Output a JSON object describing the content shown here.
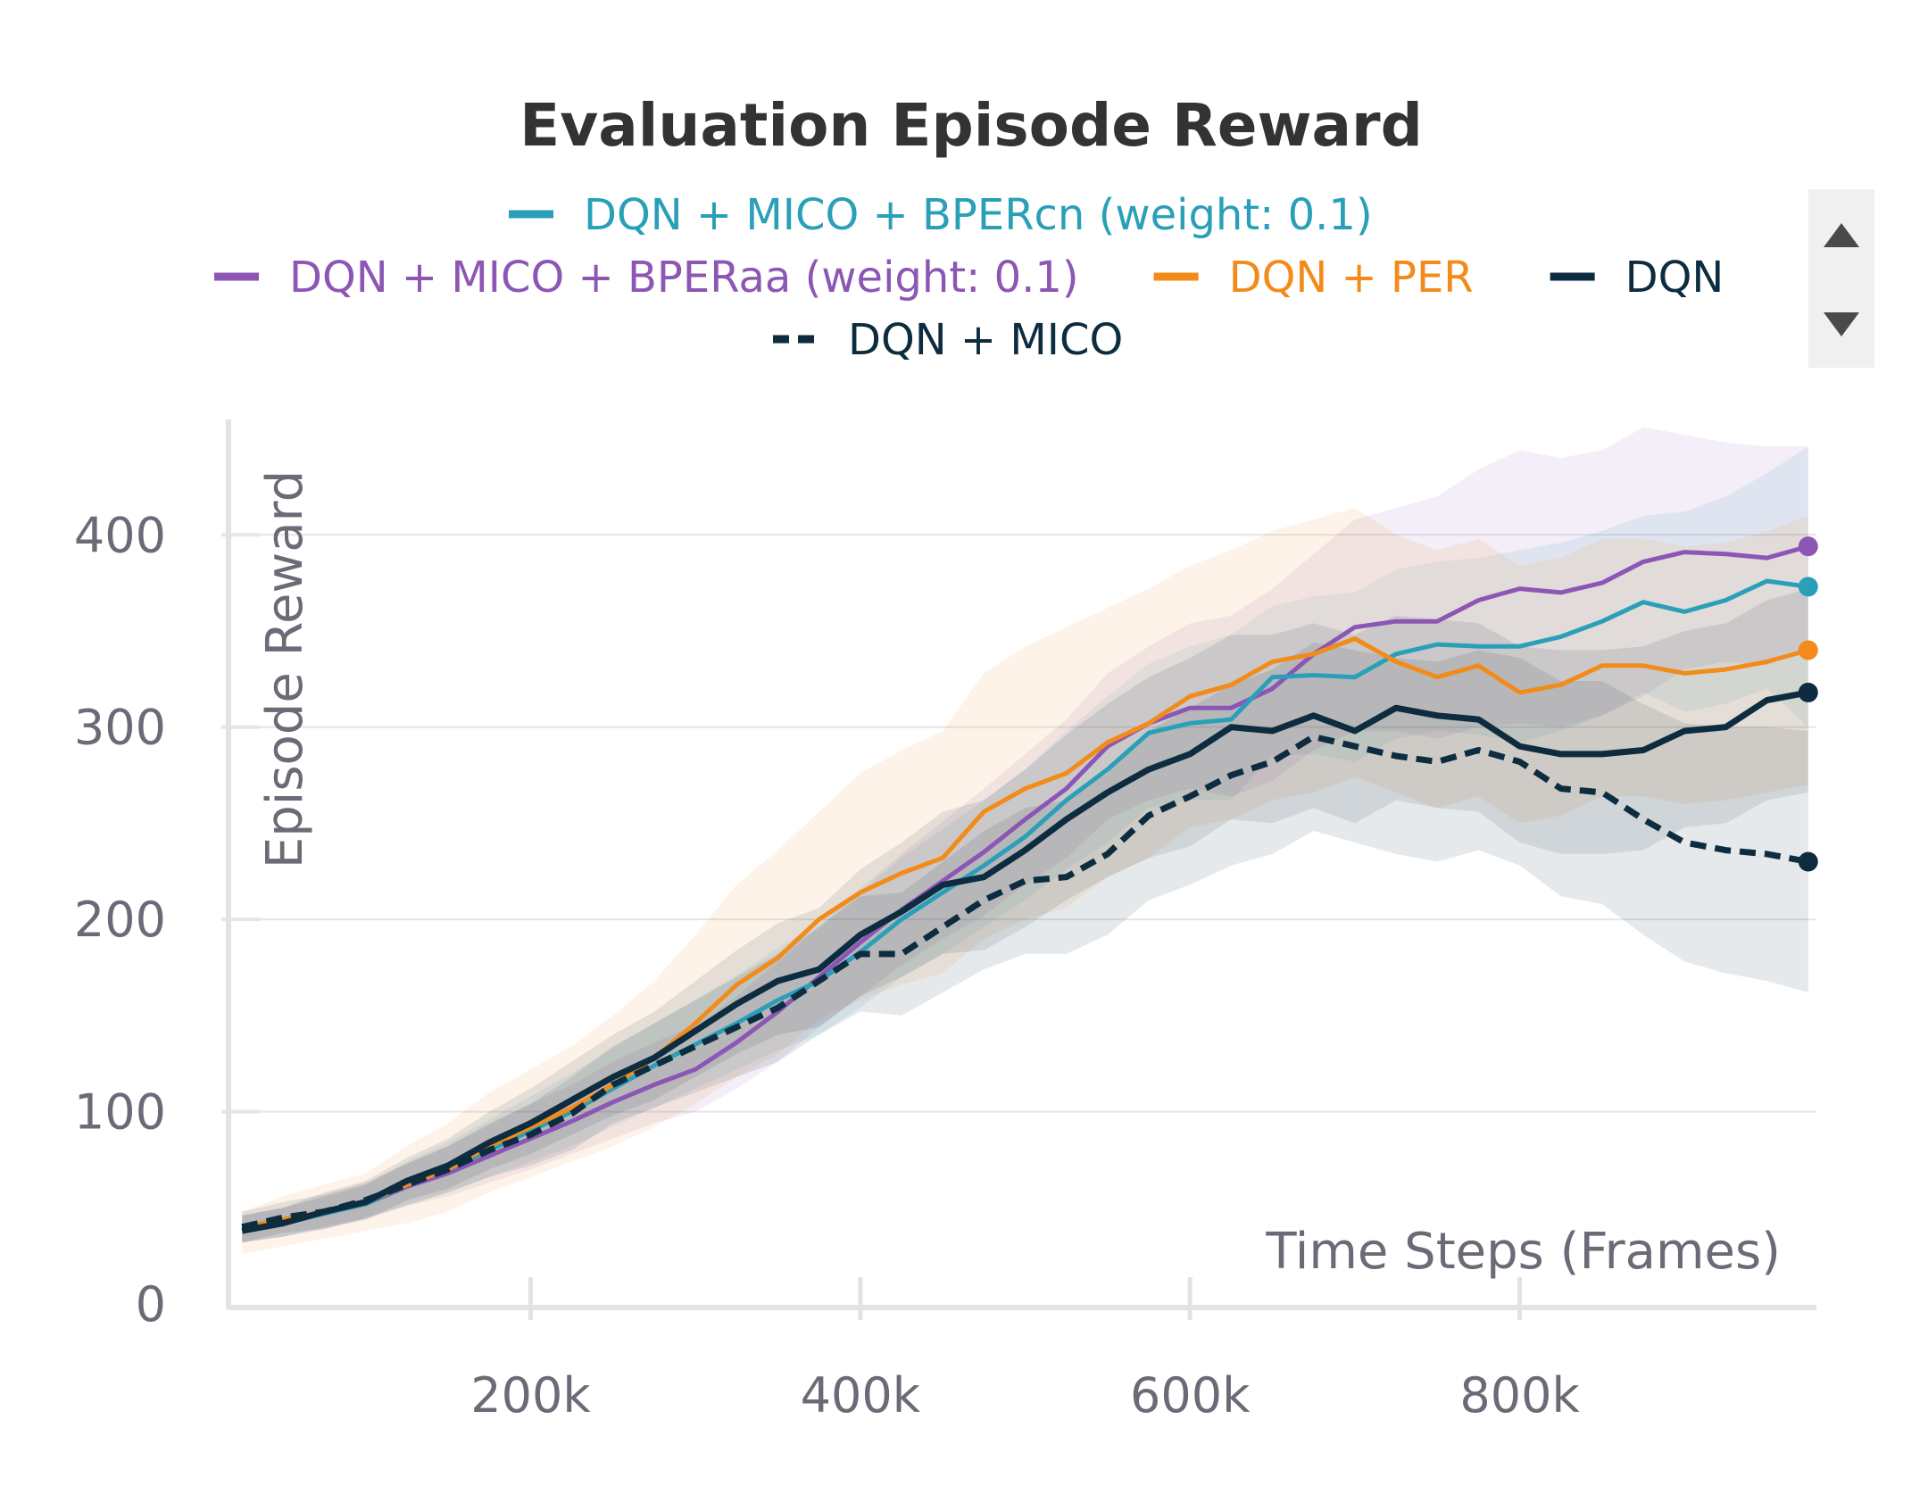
{
  "chart_data": {
    "type": "line",
    "title": "Evaluation Episode Reward",
    "xlabel": "Time Steps (Frames)",
    "ylabel": "Episode Reward",
    "xlim": [
      20000,
      980000
    ],
    "ylim": [
      0,
      460
    ],
    "x_ticks": [
      {
        "value": 200000,
        "label": "200k"
      },
      {
        "value": 400000,
        "label": "400k"
      },
      {
        "value": 600000,
        "label": "600k"
      },
      {
        "value": 800000,
        "label": "800k"
      }
    ],
    "y_ticks": [
      {
        "value": 0,
        "label": "0"
      },
      {
        "value": 100,
        "label": "100"
      },
      {
        "value": 200,
        "label": "200"
      },
      {
        "value": 300,
        "label": "300"
      },
      {
        "value": 400,
        "label": "400"
      }
    ],
    "grid": true,
    "legend_position": "top",
    "x": [
      25000,
      50000,
      75000,
      100000,
      125000,
      150000,
      175000,
      200000,
      225000,
      250000,
      275000,
      300000,
      325000,
      350000,
      375000,
      400000,
      425000,
      450000,
      475000,
      500000,
      525000,
      550000,
      575000,
      600000,
      625000,
      650000,
      675000,
      700000,
      725000,
      750000,
      775000,
      800000,
      825000,
      850000,
      875000,
      900000,
      925000,
      950000,
      975000
    ],
    "series": [
      {
        "name": "DQN + MICO + BPERcn (weight: 0.1)",
        "color": "#2aa0b8",
        "dashed": false,
        "values": [
          38,
          42,
          47,
          52,
          62,
          70,
          80,
          90,
          100,
          112,
          124,
          135,
          146,
          158,
          168,
          183,
          200,
          214,
          228,
          243,
          262,
          278,
          297,
          302,
          304,
          326,
          327,
          326,
          338,
          343,
          342,
          342,
          347,
          355,
          365,
          360,
          366,
          376,
          373
        ],
        "upper": [
          46,
          50,
          56,
          62,
          74,
          84,
          96,
          108,
          120,
          133,
          146,
          158,
          171,
          185,
          198,
          214,
          232,
          247,
          262,
          278,
          298,
          316,
          333,
          342,
          348,
          363,
          368,
          370,
          382,
          386,
          388,
          392,
          396,
          402,
          410,
          412,
          420,
          432,
          446
        ],
        "lower": [
          32,
          35,
          39,
          44,
          52,
          58,
          66,
          74,
          82,
          92,
          102,
          112,
          122,
          132,
          140,
          154,
          170,
          182,
          196,
          210,
          226,
          240,
          258,
          262,
          262,
          285,
          286,
          282,
          294,
          298,
          296,
          292,
          298,
          306,
          318,
          308,
          312,
          320,
          300
        ]
      },
      {
        "name": "DQN + MICO + BPERaa (weight: 0.1)",
        "color": "#8c56b5",
        "dashed": false,
        "values": [
          38,
          42,
          47,
          52,
          61,
          68,
          77,
          86,
          95,
          105,
          114,
          122,
          136,
          152,
          170,
          188,
          205,
          220,
          235,
          252,
          268,
          290,
          302,
          310,
          310,
          320,
          338,
          352,
          355,
          355,
          366,
          372,
          370,
          375,
          386,
          391,
          390,
          388,
          394
        ],
        "upper": [
          46,
          50,
          56,
          62,
          73,
          82,
          93,
          104,
          114,
          126,
          136,
          145,
          160,
          178,
          196,
          216,
          234,
          251,
          268,
          286,
          304,
          328,
          342,
          354,
          358,
          372,
          390,
          408,
          414,
          420,
          434,
          444,
          440,
          444,
          456,
          452,
          448,
          446,
          446
        ],
        "lower": [
          32,
          35,
          39,
          44,
          51,
          56,
          63,
          70,
          78,
          86,
          94,
          100,
          112,
          126,
          144,
          160,
          176,
          190,
          202,
          218,
          232,
          252,
          262,
          268,
          264,
          272,
          288,
          298,
          298,
          294,
          300,
          302,
          300,
          306,
          316,
          330,
          334,
          332,
          342
        ]
      },
      {
        "name": "DQN + PER",
        "color": "#f28b1a",
        "dashed": false,
        "values": [
          40,
          44,
          48,
          53,
          62,
          70,
          82,
          92,
          102,
          114,
          128,
          146,
          166,
          180,
          200,
          214,
          224,
          232,
          256,
          268,
          276,
          292,
          302,
          316,
          322,
          334,
          338,
          346,
          334,
          326,
          332,
          318,
          322,
          332,
          332,
          328,
          330,
          334,
          340
        ],
        "upper": [
          48,
          56,
          62,
          68,
          82,
          94,
          110,
          122,
          134,
          150,
          168,
          192,
          218,
          236,
          256,
          276,
          288,
          298,
          328,
          342,
          352,
          362,
          372,
          384,
          392,
          402,
          408,
          414,
          400,
          392,
          398,
          384,
          388,
          398,
          398,
          394,
          396,
          402,
          410
        ],
        "lower": [
          26,
          30,
          34,
          38,
          42,
          48,
          58,
          66,
          74,
          82,
          92,
          104,
          118,
          130,
          148,
          158,
          166,
          172,
          190,
          200,
          206,
          222,
          232,
          248,
          252,
          262,
          266,
          274,
          266,
          258,
          264,
          250,
          254,
          264,
          264,
          260,
          262,
          266,
          270
        ]
      },
      {
        "name": "DQN",
        "color": "#0d2c3f",
        "dashed": false,
        "values": [
          38,
          42,
          48,
          53,
          64,
          72,
          84,
          94,
          106,
          118,
          128,
          142,
          156,
          168,
          174,
          192,
          204,
          218,
          222,
          236,
          252,
          266,
          278,
          286,
          300,
          298,
          306,
          298,
          310,
          306,
          304,
          290,
          286,
          286,
          288,
          298,
          300,
          314,
          318
        ],
        "upper": [
          46,
          50,
          58,
          64,
          76,
          86,
          100,
          112,
          126,
          140,
          152,
          168,
          184,
          198,
          206,
          226,
          240,
          256,
          262,
          278,
          296,
          312,
          326,
          336,
          348,
          348,
          354,
          348,
          358,
          356,
          354,
          342,
          340,
          340,
          342,
          350,
          354,
          366,
          372
        ],
        "lower": [
          32,
          35,
          40,
          44,
          54,
          60,
          70,
          78,
          88,
          98,
          106,
          118,
          130,
          140,
          144,
          160,
          170,
          182,
          184,
          196,
          210,
          222,
          232,
          238,
          252,
          250,
          258,
          250,
          262,
          258,
          256,
          240,
          234,
          234,
          236,
          248,
          250,
          262,
          266
        ]
      },
      {
        "name": "DQN + MICO",
        "color": "#0d2c3f",
        "dashed": true,
        "values": [
          40,
          45,
          48,
          54,
          62,
          70,
          80,
          88,
          99,
          114,
          124,
          134,
          144,
          154,
          168,
          182,
          182,
          196,
          210,
          220,
          222,
          234,
          254,
          264,
          275,
          282,
          295,
          290,
          285,
          282,
          288,
          282,
          268,
          266,
          252,
          240,
          236,
          234,
          230
        ],
        "upper": [
          48,
          53,
          57,
          63,
          73,
          82,
          94,
          104,
          118,
          134,
          146,
          158,
          170,
          182,
          196,
          212,
          214,
          230,
          246,
          258,
          262,
          276,
          298,
          310,
          322,
          330,
          344,
          340,
          336,
          334,
          340,
          336,
          324,
          324,
          312,
          302,
          300,
          300,
          298
        ],
        "lower": [
          32,
          37,
          39,
          45,
          51,
          58,
          66,
          72,
          80,
          94,
          102,
          110,
          118,
          126,
          140,
          152,
          150,
          162,
          174,
          182,
          182,
          192,
          210,
          218,
          228,
          234,
          246,
          240,
          234,
          230,
          236,
          228,
          212,
          208,
          192,
          178,
          172,
          168,
          162
        ]
      }
    ]
  },
  "legend_scroll": {
    "up_icon": "triangle-up-icon",
    "down_icon": "triangle-down-icon"
  }
}
